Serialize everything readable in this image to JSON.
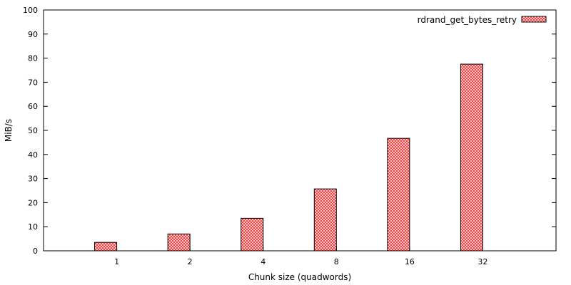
{
  "chart_data": {
    "type": "bar",
    "categories": [
      "1",
      "2",
      "4",
      "8",
      "16",
      "32"
    ],
    "series": [
      {
        "name": "rdrand_get_bytes_retry",
        "values": [
          3.5,
          7.0,
          13.5,
          25.7,
          46.7,
          77.5
        ]
      }
    ],
    "title": "",
    "xlabel": "Chunk size (quadwords)",
    "ylabel": "MiB/s",
    "ylim": [
      0,
      100
    ],
    "yticks": [
      0,
      10,
      20,
      30,
      40,
      50,
      60,
      70,
      80,
      90,
      100
    ],
    "grid": false,
    "legend_position": "top-right",
    "bar_fill": "crosshatch",
    "colors": {
      "bar_pattern": "#ff3030",
      "bar_border": "#000000",
      "axes": "#000000"
    }
  }
}
